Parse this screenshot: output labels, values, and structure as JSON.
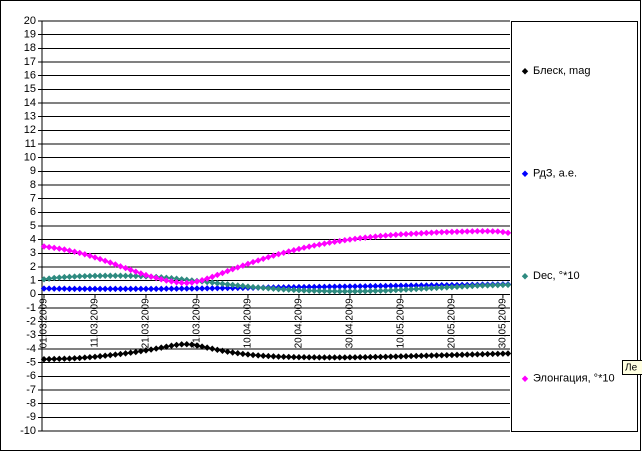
{
  "chart_data": {
    "type": "line",
    "categories": [
      "01.03.2009",
      null,
      null,
      null,
      null,
      null,
      null,
      null,
      null,
      null,
      "11.03.2009",
      null,
      null,
      null,
      null,
      null,
      null,
      null,
      null,
      null,
      "21.03.2009",
      null,
      null,
      null,
      null,
      null,
      null,
      null,
      null,
      null,
      "31.03.2009",
      null,
      null,
      null,
      null,
      null,
      null,
      null,
      null,
      null,
      "10.04.2009",
      null,
      null,
      null,
      null,
      null,
      null,
      null,
      null,
      null,
      "20.04.2009",
      null,
      null,
      null,
      null,
      null,
      null,
      null,
      null,
      null,
      "30.04.2009",
      null,
      null,
      null,
      null,
      null,
      null,
      null,
      null,
      null,
      "10.05.2009",
      null,
      null,
      null,
      null,
      null,
      null,
      null,
      null,
      null,
      "20.05.2009",
      null,
      null,
      null,
      null,
      null,
      null,
      null,
      null,
      null,
      "30.05.2009",
      null
    ],
    "series": [
      {
        "name": "Блеск, mag",
        "color": "#000000",
        "values": [
          -4.75,
          -4.74,
          -4.73,
          -4.72,
          -4.71,
          -4.7,
          -4.68,
          -4.66,
          -4.63,
          -4.6,
          -4.57,
          -4.53,
          -4.49,
          -4.45,
          -4.41,
          -4.37,
          -4.32,
          -4.27,
          -4.22,
          -4.16,
          -4.1,
          -4.04,
          -3.97,
          -3.9,
          -3.83,
          -3.76,
          -3.7,
          -3.66,
          -3.65,
          -3.68,
          -3.74,
          -3.82,
          -3.9,
          -3.98,
          -4.06,
          -4.13,
          -4.2,
          -4.26,
          -4.31,
          -4.36,
          -4.4,
          -4.44,
          -4.47,
          -4.5,
          -4.52,
          -4.54,
          -4.56,
          -4.57,
          -4.58,
          -4.59,
          -4.6,
          -4.6,
          -4.61,
          -4.61,
          -4.62,
          -4.62,
          -4.62,
          -4.62,
          -4.62,
          -4.62,
          -4.61,
          -4.61,
          -4.6,
          -4.6,
          -4.59,
          -4.58,
          -4.58,
          -4.57,
          -4.56,
          -4.55,
          -4.54,
          -4.53,
          -4.52,
          -4.51,
          -4.5,
          -4.49,
          -4.48,
          -4.47,
          -4.46,
          -4.45,
          -4.44,
          -4.43,
          -4.42,
          -4.41,
          -4.4,
          -4.39,
          -4.38,
          -4.37,
          -4.36,
          -4.35,
          -4.34,
          -4.33
        ]
      },
      {
        "name": "РдЗ, а.е.",
        "color": "#0000ff",
        "values": [
          0.42,
          0.42,
          0.41,
          0.41,
          0.41,
          0.4,
          0.4,
          0.4,
          0.4,
          0.4,
          0.4,
          0.4,
          0.4,
          0.4,
          0.4,
          0.4,
          0.4,
          0.4,
          0.4,
          0.4,
          0.4,
          0.4,
          0.4,
          0.4,
          0.41,
          0.41,
          0.41,
          0.42,
          0.42,
          0.42,
          0.43,
          0.43,
          0.44,
          0.44,
          0.45,
          0.45,
          0.46,
          0.46,
          0.47,
          0.47,
          0.48,
          0.48,
          0.49,
          0.49,
          0.5,
          0.5,
          0.51,
          0.51,
          0.52,
          0.52,
          0.53,
          0.53,
          0.54,
          0.54,
          0.55,
          0.55,
          0.56,
          0.56,
          0.57,
          0.57,
          0.58,
          0.58,
          0.59,
          0.59,
          0.6,
          0.6,
          0.61,
          0.61,
          0.62,
          0.62,
          0.63,
          0.63,
          0.64,
          0.64,
          0.65,
          0.65,
          0.66,
          0.66,
          0.67,
          0.67,
          0.68,
          0.68,
          0.69,
          0.69,
          0.7,
          0.7,
          0.71,
          0.71,
          0.72,
          0.72,
          0.73,
          0.73
        ]
      },
      {
        "name": "Dec, °*10",
        "color": "#2e8b80",
        "values": [
          1.1,
          1.15,
          1.2,
          1.23,
          1.26,
          1.28,
          1.3,
          1.32,
          1.33,
          1.34,
          1.35,
          1.35,
          1.36,
          1.36,
          1.36,
          1.36,
          1.35,
          1.35,
          1.34,
          1.33,
          1.31,
          1.29,
          1.27,
          1.24,
          1.21,
          1.18,
          1.14,
          1.1,
          1.06,
          1.02,
          0.98,
          0.94,
          0.9,
          0.86,
          0.81,
          0.77,
          0.73,
          0.69,
          0.65,
          0.61,
          0.57,
          0.53,
          0.5,
          0.47,
          0.44,
          0.41,
          0.38,
          0.36,
          0.34,
          0.32,
          0.3,
          0.28,
          0.27,
          0.26,
          0.25,
          0.24,
          0.23,
          0.23,
          0.22,
          0.22,
          0.22,
          0.22,
          0.23,
          0.23,
          0.24,
          0.25,
          0.26,
          0.27,
          0.29,
          0.31,
          0.33,
          0.35,
          0.37,
          0.39,
          0.41,
          0.43,
          0.45,
          0.47,
          0.49,
          0.51,
          0.53,
          0.55,
          0.57,
          0.59,
          0.61,
          0.63,
          0.64,
          0.65,
          0.66,
          0.67,
          0.68,
          0.69
        ]
      },
      {
        "name": "Элонгация, °*10",
        "color": "#ff00ff",
        "values": [
          3.5,
          3.45,
          3.4,
          3.34,
          3.28,
          3.2,
          3.12,
          3.03,
          2.93,
          2.82,
          2.7,
          2.58,
          2.45,
          2.32,
          2.19,
          2.05,
          1.92,
          1.79,
          1.66,
          1.53,
          1.41,
          1.3,
          1.2,
          1.1,
          1.01,
          0.94,
          0.88,
          0.84,
          0.83,
          0.86,
          0.93,
          1.03,
          1.15,
          1.28,
          1.42,
          1.56,
          1.7,
          1.84,
          1.97,
          2.1,
          2.23,
          2.36,
          2.48,
          2.6,
          2.72,
          2.83,
          2.94,
          3.04,
          3.14,
          3.23,
          3.32,
          3.41,
          3.49,
          3.57,
          3.64,
          3.71,
          3.78,
          3.84,
          3.9,
          3.96,
          4.01,
          4.06,
          4.11,
          4.15,
          4.19,
          4.23,
          4.27,
          4.3,
          4.33,
          4.36,
          4.39,
          4.41,
          4.43,
          4.45,
          4.47,
          4.49,
          4.51,
          4.53,
          4.55,
          4.56,
          4.57,
          4.58,
          4.59,
          4.6,
          4.61,
          4.62,
          4.62,
          4.62,
          4.61,
          4.6,
          4.56,
          4.5
        ]
      }
    ],
    "ylim": [
      -10,
      20
    ],
    "yticks": [
      -10,
      -9,
      -8,
      -7,
      -6,
      -5,
      -4,
      -3,
      -2,
      -1,
      0,
      1,
      2,
      3,
      4,
      5,
      6,
      7,
      8,
      9,
      10,
      11,
      12,
      13,
      14,
      15,
      16,
      17,
      18,
      19,
      20
    ],
    "grid": true,
    "legend": "right",
    "tooltip": "Ле"
  }
}
